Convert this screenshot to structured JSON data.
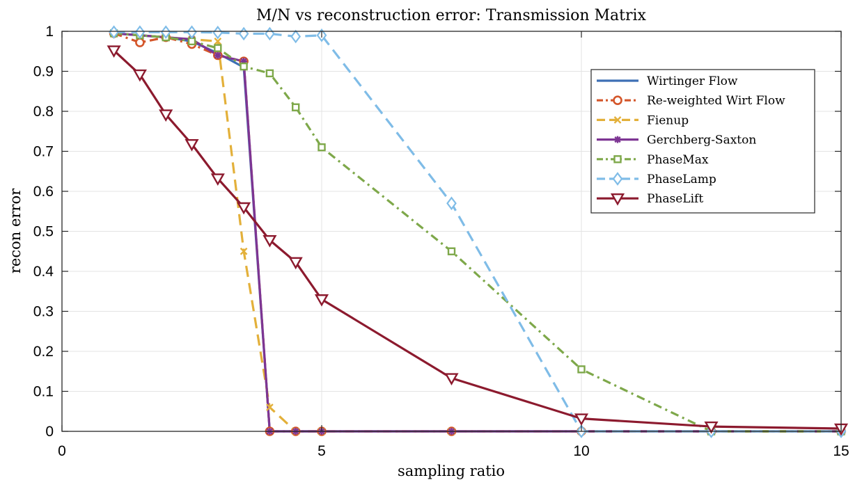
{
  "chart_data": {
    "type": "line",
    "title": "M/N vs reconstruction error: Transmission Matrix",
    "xlabel": "sampling ratio",
    "ylabel": "recon error",
    "xlim": [
      0,
      15
    ],
    "ylim": [
      0,
      1
    ],
    "xticks": [
      0,
      5,
      10,
      15
    ],
    "yticks": [
      0,
      0.1,
      0.2,
      0.3,
      0.4,
      0.5,
      0.6,
      0.7,
      0.8,
      0.9,
      1
    ],
    "grid": true,
    "legend_position": "top-right",
    "series": [
      {
        "name": "Wirtinger Flow",
        "color": "#3d6fb5",
        "line": "solid",
        "marker": "none",
        "points": [
          [
            1,
            0.995
          ],
          [
            1.5,
            0.99
          ],
          [
            2,
            0.985
          ],
          [
            2.5,
            0.975
          ],
          [
            3,
            0.945
          ],
          [
            3.5,
            0.91
          ],
          [
            4,
            0
          ],
          [
            4.5,
            0
          ],
          [
            5,
            0
          ],
          [
            7.5,
            0
          ],
          [
            10,
            0
          ],
          [
            12.5,
            0
          ],
          [
            15,
            0
          ]
        ]
      },
      {
        "name": "Re-weighted Wirt Flow",
        "color": "#d4562a",
        "line": "dashdot",
        "marker": "circle",
        "points": [
          [
            1,
            0.995
          ],
          [
            1.5,
            0.972
          ],
          [
            2,
            0.985
          ],
          [
            2.5,
            0.968
          ],
          [
            3,
            0.94
          ],
          [
            3.5,
            0.925
          ],
          [
            4,
            0
          ],
          [
            4.5,
            0
          ],
          [
            5,
            0
          ],
          [
            7.5,
            0
          ],
          [
            10,
            0
          ],
          [
            12.5,
            0
          ],
          [
            15,
            0
          ]
        ]
      },
      {
        "name": "Fienup",
        "color": "#e3b03a",
        "line": "dashed",
        "marker": "x",
        "points": [
          [
            1,
            0.995
          ],
          [
            1.5,
            0.99
          ],
          [
            2,
            0.985
          ],
          [
            2.5,
            0.98
          ],
          [
            3,
            0.975
          ],
          [
            3.5,
            0.45
          ],
          [
            4,
            0.06
          ],
          [
            4.5,
            0
          ],
          [
            5,
            0
          ],
          [
            7.5,
            0
          ],
          [
            10,
            0
          ],
          [
            12.5,
            0
          ],
          [
            15,
            0
          ]
        ]
      },
      {
        "name": "Gerchberg-Saxton",
        "color": "#7d3593",
        "line": "solid",
        "marker": "star",
        "points": [
          [
            1,
            0.995
          ],
          [
            1.5,
            0.99
          ],
          [
            2,
            0.985
          ],
          [
            2.5,
            0.98
          ],
          [
            3,
            0.94
          ],
          [
            3.5,
            0.925
          ],
          [
            4,
            0
          ],
          [
            4.5,
            0
          ],
          [
            5,
            0
          ],
          [
            7.5,
            0
          ],
          [
            10,
            0
          ],
          [
            12.5,
            0
          ],
          [
            15,
            0
          ]
        ]
      },
      {
        "name": "PhaseMax",
        "color": "#7ea84a",
        "line": "dashdot",
        "marker": "square",
        "points": [
          [
            1,
            0.995
          ],
          [
            1.5,
            0.99
          ],
          [
            2,
            0.985
          ],
          [
            2.5,
            0.975
          ],
          [
            3,
            0.958
          ],
          [
            3.5,
            0.912
          ],
          [
            4,
            0.895
          ],
          [
            4.5,
            0.81
          ],
          [
            5,
            0.71
          ],
          [
            7.5,
            0.45
          ],
          [
            10,
            0.155
          ],
          [
            12.5,
            0
          ],
          [
            15,
            0
          ]
        ]
      },
      {
        "name": "PhaseLamp",
        "color": "#7fbce7",
        "line": "dashed",
        "marker": "diamond",
        "points": [
          [
            1,
            0.998
          ],
          [
            1.5,
            0.998
          ],
          [
            2,
            0.998
          ],
          [
            2.5,
            0.998
          ],
          [
            3,
            0.997
          ],
          [
            3.5,
            0.994
          ],
          [
            4,
            0.994
          ],
          [
            4.5,
            0.987
          ],
          [
            5,
            0.99
          ],
          [
            7.5,
            0.57
          ],
          [
            10,
            0
          ],
          [
            12.5,
            0
          ],
          [
            15,
            0
          ]
        ]
      },
      {
        "name": "PhaseLift",
        "color": "#8c1a2e",
        "line": "solid",
        "marker": "triangle-down",
        "points": [
          [
            1,
            0.952
          ],
          [
            1.5,
            0.892
          ],
          [
            2,
            0.792
          ],
          [
            2.5,
            0.718
          ],
          [
            3,
            0.632
          ],
          [
            3.5,
            0.56
          ],
          [
            4,
            0.478
          ],
          [
            4.5,
            0.423
          ],
          [
            5,
            0.33
          ],
          [
            7.5,
            0.133
          ],
          [
            10,
            0.032
          ],
          [
            12.5,
            0.012
          ],
          [
            15,
            0.007
          ]
        ]
      }
    ]
  }
}
